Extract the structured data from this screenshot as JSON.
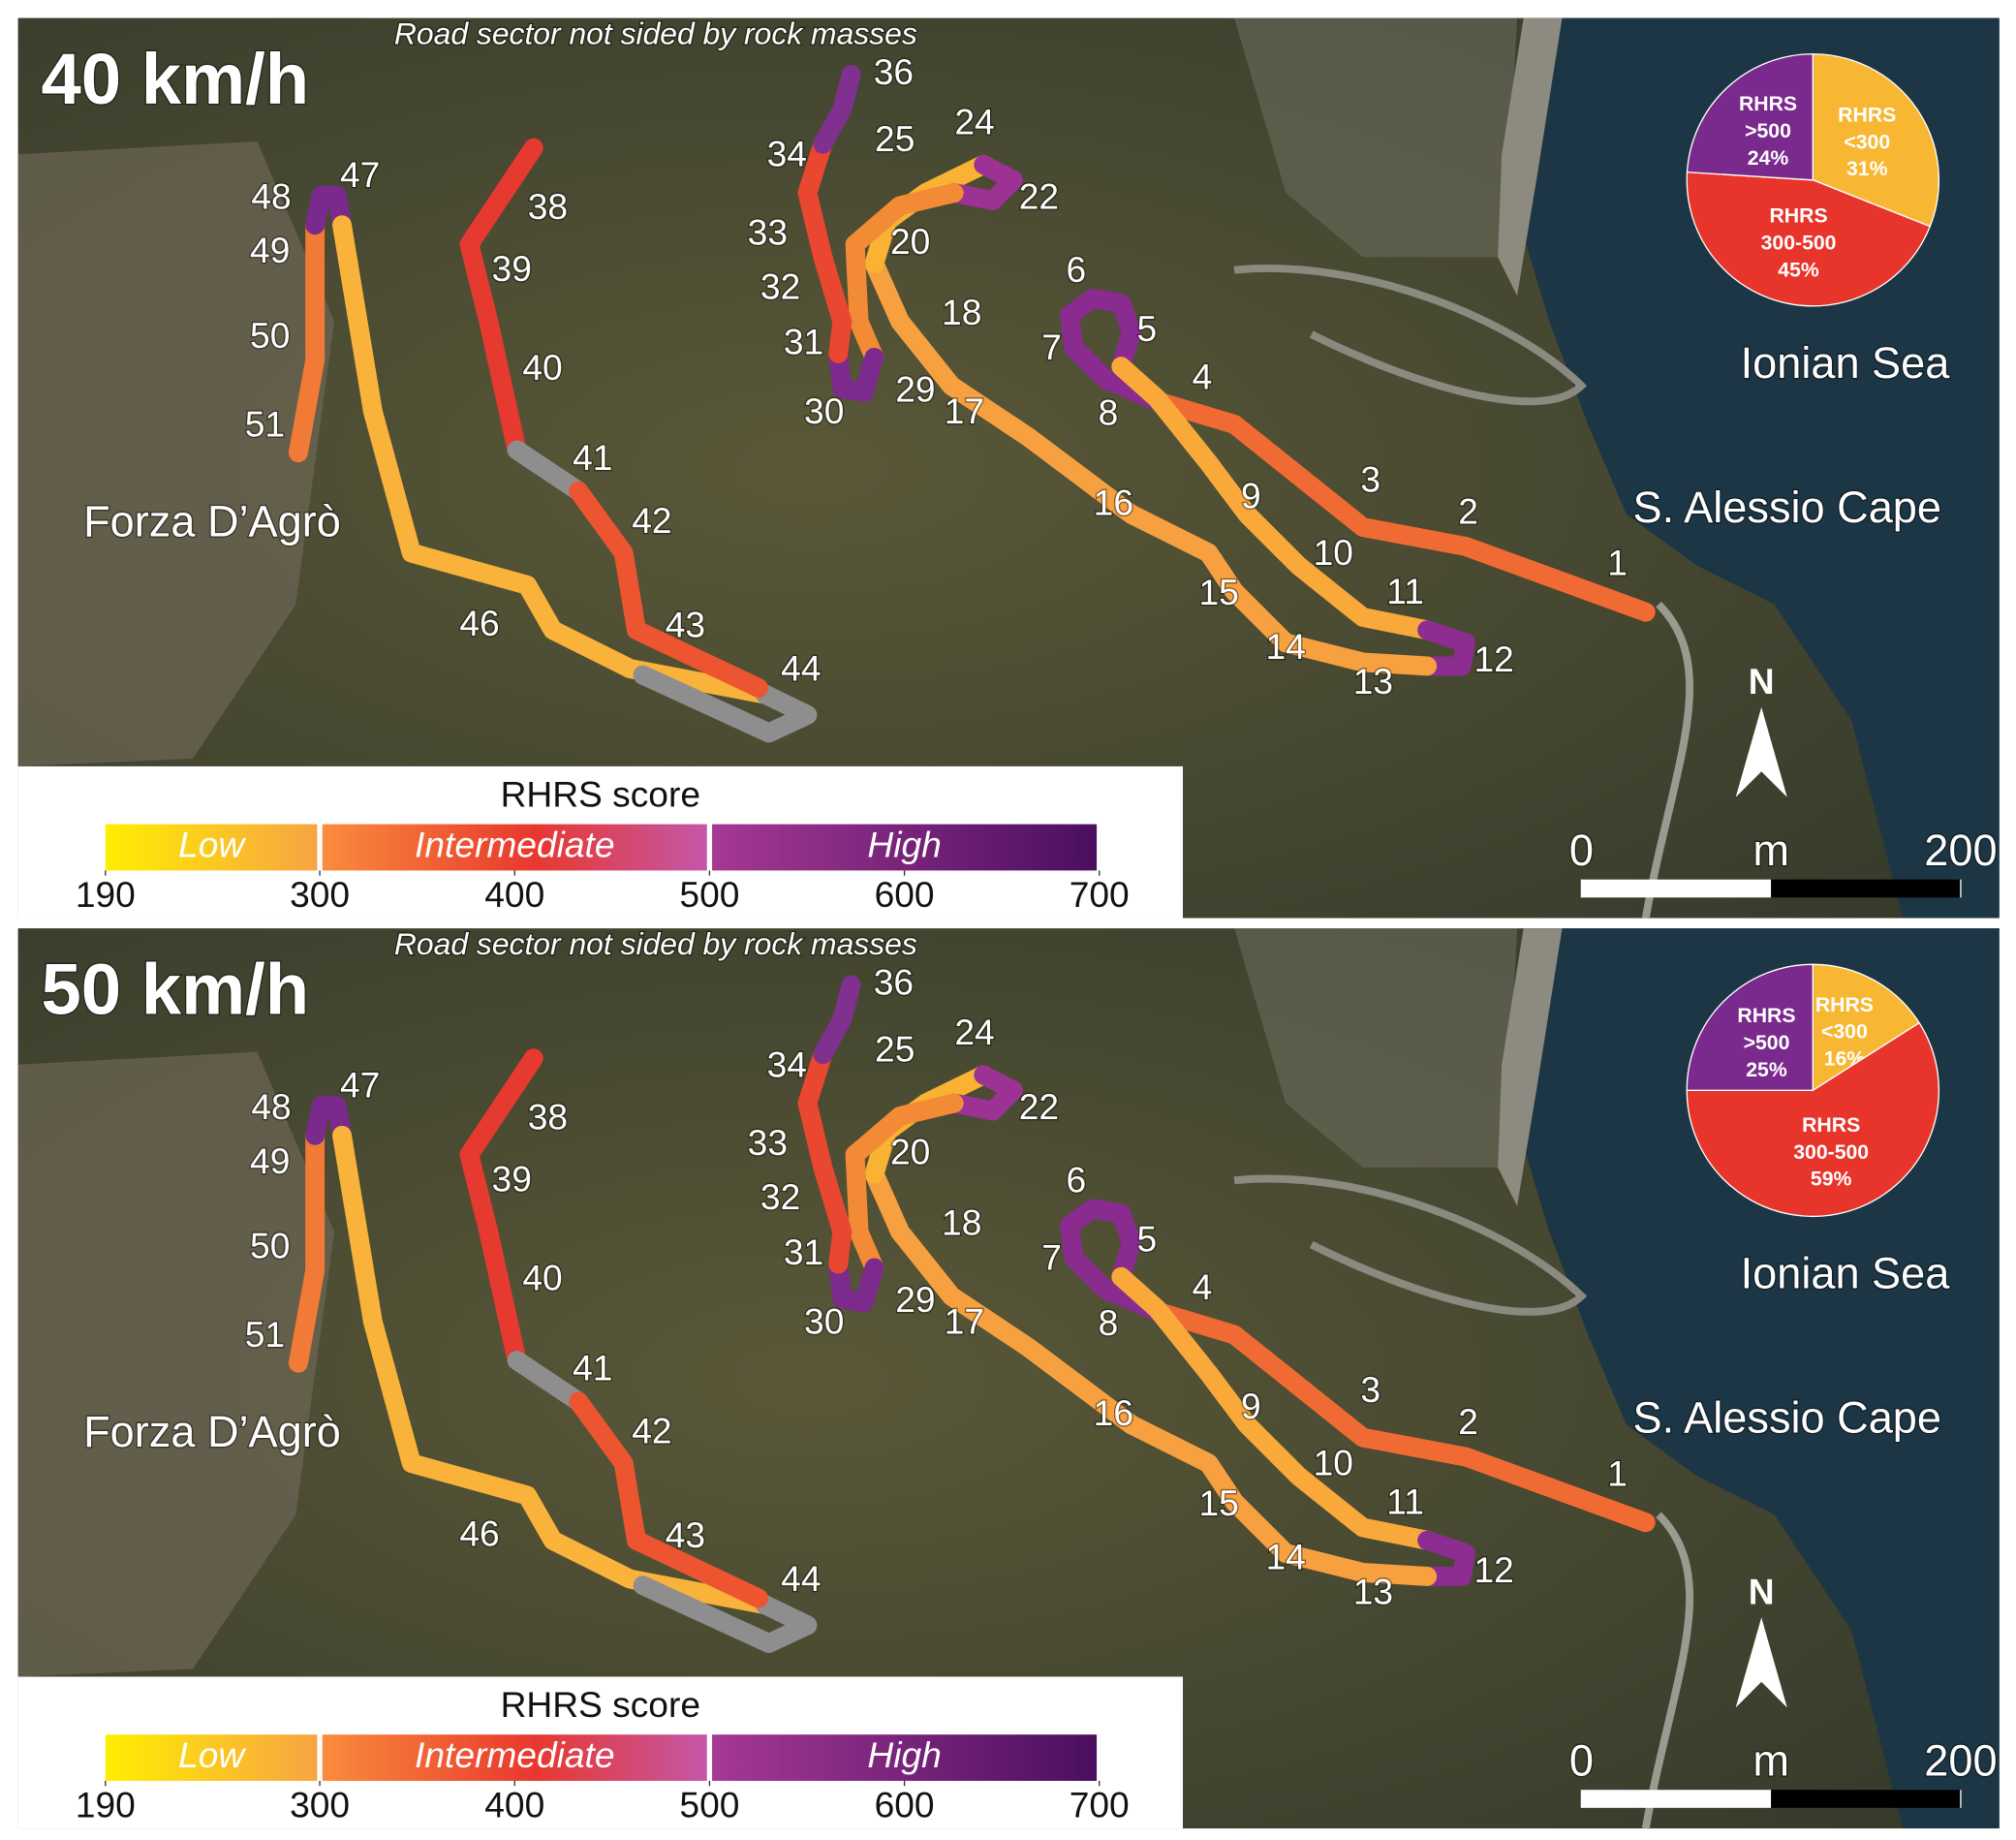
{
  "panels": [
    {
      "title": "40 km/h",
      "note": "Road sector not sided by rock masses",
      "places": [
        "Forza D’Agrò",
        "Ionian Sea",
        "S. Alessio Cape"
      ],
      "segment_labels": [
        "1",
        "2",
        "3",
        "4",
        "5",
        "6",
        "7",
        "8",
        "9",
        "10",
        "11",
        "12",
        "13",
        "14",
        "15",
        "16",
        "17",
        "18",
        "20",
        "22",
        "24",
        "25",
        "29",
        "30",
        "31",
        "32",
        "33",
        "34",
        "36",
        "38",
        "39",
        "40",
        "41",
        "42",
        "43",
        "44",
        "46",
        "47",
        "48",
        "49",
        "50",
        "51"
      ],
      "pie": {
        "type": "pie",
        "categories": [
          [
            "RHRS",
            "<300"
          ],
          [
            "RHRS",
            "300-500"
          ],
          [
            "RHRS",
            ">500"
          ]
        ],
        "values": [
          31,
          45,
          24
        ],
        "value_labels": [
          "31%",
          "45%",
          "24%"
        ],
        "colors": [
          "#f8b732",
          "#e8352b",
          "#7a2a8c"
        ]
      },
      "legend": {
        "title": "RHRS score",
        "classes": [
          "Low",
          "Intermediate",
          "High"
        ],
        "ticks": [
          190,
          300,
          400,
          500,
          600,
          700
        ]
      },
      "scale_bar": {
        "ticks": [
          0,
          200
        ],
        "unit": "m"
      }
    },
    {
      "title": "50 km/h",
      "note": "Road sector not sided by rock masses",
      "places": [
        "Forza D’Agrò",
        "Ionian Sea",
        "S. Alessio Cape"
      ],
      "segment_labels": [
        "1",
        "2",
        "3",
        "4",
        "5",
        "6",
        "7",
        "8",
        "9",
        "10",
        "11",
        "12",
        "13",
        "14",
        "15",
        "16",
        "17",
        "18",
        "20",
        "22",
        "24",
        "25",
        "29",
        "30",
        "31",
        "32",
        "33",
        "34",
        "36",
        "38",
        "39",
        "40",
        "41",
        "42",
        "43",
        "44",
        "46",
        "47",
        "48",
        "49",
        "50",
        "51"
      ],
      "pie": {
        "type": "pie",
        "categories": [
          [
            "RHRS",
            "<300"
          ],
          [
            "RHRS",
            "300-500"
          ],
          [
            "RHRS",
            ">500"
          ]
        ],
        "values": [
          16,
          59,
          25
        ],
        "value_labels": [
          "16%",
          "59%",
          "25%"
        ],
        "colors": [
          "#f8b732",
          "#e8352b",
          "#7a2a8c"
        ]
      },
      "legend": {
        "title": "RHRS score",
        "classes": [
          "Low",
          "Intermediate",
          "High"
        ],
        "ticks": [
          190,
          300,
          400,
          500,
          600,
          700
        ]
      },
      "scale_bar": {
        "ticks": [
          0,
          200
        ],
        "unit": "m"
      }
    }
  ]
}
